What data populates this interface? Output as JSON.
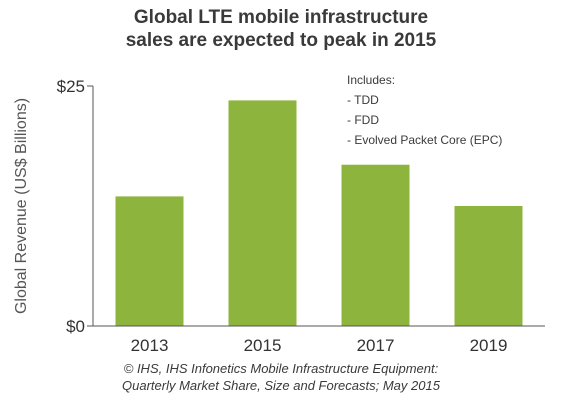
{
  "title_lines": [
    "Global LTE mobile infrastructure",
    "sales are expected to peak in 2015"
  ],
  "chart_data": {
    "type": "bar",
    "categories": [
      "2013",
      "2015",
      "2017",
      "2019"
    ],
    "values": [
      13.5,
      23.5,
      16.8,
      12.5
    ],
    "ylabel": "Global Revenue (US$ Billions)",
    "xlabel": "",
    "ylim": [
      0,
      25
    ],
    "yticks": [
      {
        "value": 0,
        "label": "$0"
      },
      {
        "value": 25,
        "label": "$25"
      }
    ],
    "legend_note": [
      "Includes:",
      "- TDD",
      "- FDD",
      "- Evolved Packet Core (EPC)"
    ],
    "grid": false,
    "colors": {
      "bar": "#8db43c",
      "axis": "#555555",
      "text": "#333333"
    }
  },
  "source_lines": [
    "© IHS, IHS Infonetics Mobile Infrastructure Equipment:",
    "Quarterly Market Share, Size and Forecasts; May 2015"
  ]
}
